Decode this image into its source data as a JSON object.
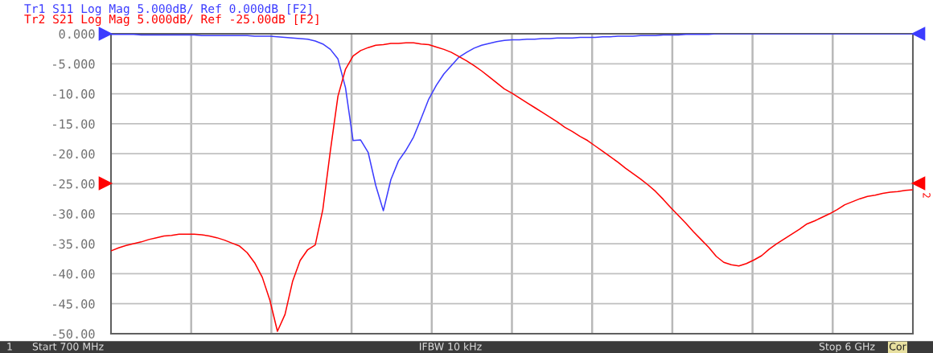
{
  "chart_data": {
    "type": "line",
    "categories": [
      null,
      null,
      null,
      null,
      null,
      null,
      null,
      null,
      null,
      null,
      null,
      null,
      null,
      null,
      null,
      null,
      null,
      null,
      null,
      null,
      null,
      null,
      null,
      null,
      null,
      null,
      null,
      null,
      null,
      null,
      null,
      null,
      null,
      null,
      null,
      null,
      null,
      null,
      null,
      null,
      null,
      null,
      null,
      null,
      null,
      null,
      null,
      null,
      null,
      null,
      null,
      null,
      null,
      null,
      null,
      null,
      null,
      null,
      null,
      null,
      null,
      null,
      null,
      null,
      null,
      null,
      null,
      null,
      null,
      null,
      null,
      null,
      null,
      null,
      null,
      null,
      null,
      null,
      null,
      null,
      null,
      null,
      null,
      null,
      null,
      null,
      null,
      null,
      null,
      null,
      null,
      null,
      null,
      null,
      null,
      null,
      null,
      null,
      null,
      null,
      null,
      null,
      null,
      null,
      null,
      null,
      null
    ],
    "series": [
      {
        "name": "Tr1 S11 Log Mag 5.000dB/ Ref 0.000dB [F2]",
        "color": "#3c3cff",
        "values": [
          -0.1,
          -0.1,
          -0.1,
          -0.1,
          -0.2,
          -0.2,
          -0.2,
          -0.2,
          -0.2,
          -0.2,
          -0.2,
          -0.2,
          -0.3,
          -0.3,
          -0.3,
          -0.3,
          -0.3,
          -0.3,
          -0.3,
          -0.4,
          -0.4,
          -0.4,
          -0.5,
          -0.6,
          -0.7,
          -0.8,
          -0.9,
          -1.2,
          -1.7,
          -2.6,
          -4.2,
          -9.0,
          -17.8,
          -17.7,
          -19.8,
          -25.3,
          -29.5,
          -24.3,
          -21.2,
          -19.4,
          -17.2,
          -14.1,
          -10.9,
          -8.6,
          -6.7,
          -5.3,
          -3.9,
          -3.1,
          -2.4,
          -1.9,
          -1.6,
          -1.3,
          -1.1,
          -1.0,
          -1.0,
          -0.9,
          -0.9,
          -0.8,
          -0.8,
          -0.7,
          -0.7,
          -0.7,
          -0.6,
          -0.6,
          -0.6,
          -0.5,
          -0.5,
          -0.4,
          -0.4,
          -0.4,
          -0.3,
          -0.3,
          -0.3,
          -0.2,
          -0.2,
          -0.2,
          -0.1,
          -0.1,
          -0.1,
          -0.1,
          0,
          0,
          0,
          0,
          0,
          0,
          0,
          0,
          0,
          0,
          0,
          0,
          0,
          0,
          0,
          0,
          0,
          0,
          0,
          0,
          0,
          0,
          0,
          0,
          0,
          0,
          0
        ]
      },
      {
        "name": "Tr2 S21 Log Mag 5.000dB/ Ref -25.00dB [F2]",
        "color": "#ff0000",
        "values": [
          -36.2,
          -35.7,
          -35.3,
          -35.0,
          -34.7,
          -34.3,
          -34.0,
          -33.7,
          -33.6,
          -33.4,
          -33.4,
          -33.4,
          -33.5,
          -33.7,
          -34.0,
          -34.4,
          -34.9,
          -35.4,
          -36.5,
          -38.2,
          -40.6,
          -44.4,
          -49.6,
          -46.8,
          -41.3,
          -37.8,
          -36.0,
          -35.2,
          -29.3,
          -19.5,
          -10.4,
          -5.9,
          -3.7,
          -2.8,
          -2.3,
          -1.9,
          -1.8,
          -1.6,
          -1.6,
          -1.5,
          -1.5,
          -1.7,
          -1.8,
          -2.2,
          -2.6,
          -3.1,
          -3.8,
          -4.5,
          -5.3,
          -6.2,
          -7.2,
          -8.2,
          -9.2,
          -9.9,
          -10.7,
          -11.5,
          -12.3,
          -13.1,
          -13.9,
          -14.7,
          -15.6,
          -16.3,
          -17.1,
          -17.8,
          -18.7,
          -19.6,
          -20.5,
          -21.4,
          -22.4,
          -23.3,
          -24.2,
          -25.2,
          -26.3,
          -27.6,
          -29.0,
          -30.3,
          -31.6,
          -33.0,
          -34.3,
          -35.6,
          -37.1,
          -38.1,
          -38.5,
          -38.7,
          -38.3,
          -37.7,
          -37.0,
          -35.9,
          -35.0,
          -34.2,
          -33.4,
          -32.6,
          -31.7,
          -31.2,
          -30.6,
          -30.0,
          -29.3,
          -28.5,
          -28.0,
          -27.5,
          -27.1,
          -26.9,
          -26.6,
          -26.4,
          -26.3,
          -26.1,
          -26.0
        ]
      }
    ],
    "ylim": [
      -50,
      0
    ],
    "yticks": [
      {
        "value": 0,
        "label": "0.000"
      },
      {
        "value": -5,
        "label": "-5.000"
      },
      {
        "value": -10,
        "label": "-10.00"
      },
      {
        "value": -15,
        "label": "-15.00"
      },
      {
        "value": -20,
        "label": "-20.00"
      },
      {
        "value": -25,
        "label": "-25.00"
      },
      {
        "value": -30,
        "label": "-30.00"
      },
      {
        "value": -35,
        "label": "-35.00"
      },
      {
        "value": -40,
        "label": "-40.00"
      },
      {
        "value": -45,
        "label": "-45.00"
      },
      {
        "value": -50,
        "label": "-50.00"
      }
    ],
    "tick_labels": "y",
    "grid": true,
    "marker": "none",
    "line_style": "solid",
    "annotations": [
      "1",
      "Start 700 MHz",
      "IFBW 10 kHz",
      "Stop 6 GHz",
      "Cor",
      "2"
    ]
  }
}
